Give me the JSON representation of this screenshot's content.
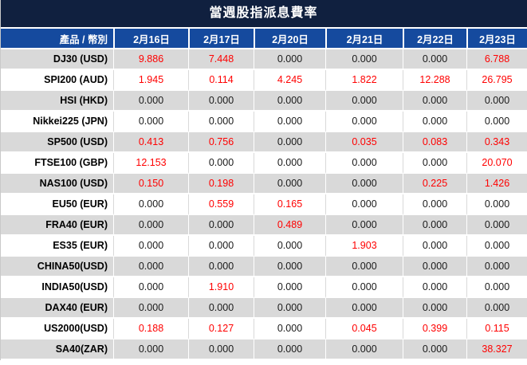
{
  "chart_data": {
    "type": "table",
    "title": "當週股指派息費率",
    "product_header": "產品 / 幣別",
    "date_headers": [
      "2月16日",
      "2月17日",
      "2月20日",
      "2月21日",
      "2月22日",
      "2月23日"
    ],
    "rows": [
      {
        "product": "DJ30 (USD)",
        "values": [
          "9.886",
          "7.448",
          "0.000",
          "0.000",
          "0.000",
          "6.788"
        ]
      },
      {
        "product": "SPI200 (AUD)",
        "values": [
          "1.945",
          "0.114",
          "4.245",
          "1.822",
          "12.288",
          "26.795"
        ]
      },
      {
        "product": "HSI (HKD)",
        "values": [
          "0.000",
          "0.000",
          "0.000",
          "0.000",
          "0.000",
          "0.000"
        ]
      },
      {
        "product": "Nikkei225 (JPN)",
        "values": [
          "0.000",
          "0.000",
          "0.000",
          "0.000",
          "0.000",
          "0.000"
        ]
      },
      {
        "product": "SP500 (USD)",
        "values": [
          "0.413",
          "0.756",
          "0.000",
          "0.035",
          "0.083",
          "0.343"
        ]
      },
      {
        "product": "FTSE100 (GBP)",
        "values": [
          "12.153",
          "0.000",
          "0.000",
          "0.000",
          "0.000",
          "20.070"
        ]
      },
      {
        "product": "NAS100 (USD)",
        "values": [
          "0.150",
          "0.198",
          "0.000",
          "0.000",
          "0.225",
          "1.426"
        ]
      },
      {
        "product": "EU50 (EUR)",
        "values": [
          "0.000",
          "0.559",
          "0.165",
          "0.000",
          "0.000",
          "0.000"
        ]
      },
      {
        "product": "FRA40 (EUR)",
        "values": [
          "0.000",
          "0.000",
          "0.489",
          "0.000",
          "0.000",
          "0.000"
        ]
      },
      {
        "product": "ES35 (EUR)",
        "values": [
          "0.000",
          "0.000",
          "0.000",
          "1.903",
          "0.000",
          "0.000"
        ]
      },
      {
        "product": "CHINA50(USD)",
        "values": [
          "0.000",
          "0.000",
          "0.000",
          "0.000",
          "0.000",
          "0.000"
        ]
      },
      {
        "product": "INDIA50(USD)",
        "values": [
          "0.000",
          "1.910",
          "0.000",
          "0.000",
          "0.000",
          "0.000"
        ]
      },
      {
        "product": "DAX40 (EUR)",
        "values": [
          "0.000",
          "0.000",
          "0.000",
          "0.000",
          "0.000",
          "0.000"
        ]
      },
      {
        "product": "US2000(USD)",
        "values": [
          "0.188",
          "0.127",
          "0.000",
          "0.045",
          "0.399",
          "0.115"
        ]
      },
      {
        "product": "SA40(ZAR)",
        "values": [
          "0.000",
          "0.000",
          "0.000",
          "0.000",
          "0.000",
          "38.327"
        ]
      }
    ]
  },
  "colors": {
    "title_bg": "#10203f",
    "header_bg": "#154a9e",
    "row_alt_bg": "#d9d9d9",
    "grid_line": "#d9d9d9",
    "value_highlight": "#ff0000",
    "value_default": "#1a1a1a"
  }
}
